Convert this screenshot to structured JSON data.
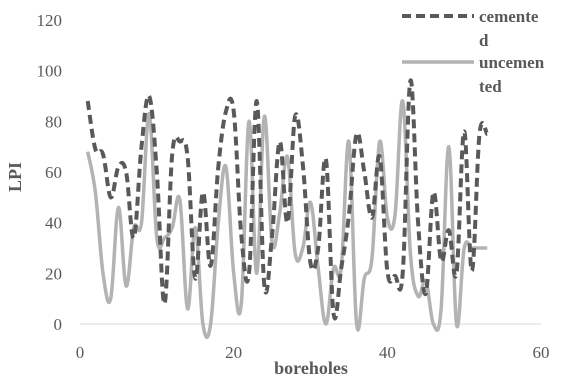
{
  "chart_data": {
    "type": "line",
    "xlabel": "boreholes",
    "ylabel": "LPI",
    "xlim": [
      0,
      60
    ],
    "ylim": [
      0,
      120
    ],
    "x_ticks": [
      "0",
      "20",
      "40",
      "60"
    ],
    "y_ticks": [
      "0",
      "20",
      "40",
      "60",
      "80",
      "100",
      "120"
    ],
    "grid": false,
    "legend_position": "top-right",
    "series": [
      {
        "name": "cemented",
        "legend_lines": [
          "cemente",
          "d"
        ],
        "style": "dashed",
        "color": "#595959",
        "x": [
          1,
          2,
          3,
          4,
          5,
          6,
          7,
          8,
          9,
          10,
          11,
          12,
          13,
          14,
          15,
          16,
          17,
          18,
          19,
          20,
          21,
          22,
          23,
          24,
          25,
          26,
          27,
          28,
          29,
          30,
          31,
          32,
          33,
          34,
          35,
          36,
          37,
          38,
          39,
          40,
          41,
          42,
          43,
          44,
          45,
          46,
          47,
          48,
          49,
          50,
          51,
          52,
          53
        ],
        "y": [
          88,
          69,
          67,
          50,
          62,
          60,
          34,
          70,
          90,
          60,
          8,
          67,
          72,
          66,
          18,
          52,
          23,
          62,
          84,
          84,
          35,
          20,
          88,
          15,
          35,
          72,
          40,
          82,
          63,
          24,
          30,
          65,
          4,
          22,
          43,
          75,
          60,
          42,
          66,
          21,
          19,
          20,
          96,
          40,
          12,
          52,
          25,
          37,
          20,
          76,
          21,
          75,
          75
        ]
      },
      {
        "name": "uncemented",
        "legend_lines": [
          "uncemen",
          "ted"
        ],
        "style": "solid",
        "color": "#b3b3b3",
        "x": [
          1,
          2,
          3,
          4,
          5,
          6,
          7,
          8,
          9,
          10,
          11,
          12,
          13,
          14,
          15,
          16,
          17,
          18,
          19,
          20,
          21,
          22,
          23,
          24,
          25,
          26,
          27,
          28,
          29,
          30,
          31,
          32,
          33,
          34,
          35,
          36,
          37,
          38,
          39,
          40,
          41,
          42,
          43,
          44,
          45,
          46,
          47,
          48,
          49,
          50,
          51,
          52,
          53
        ],
        "y": [
          68,
          52,
          20,
          10,
          46,
          15,
          38,
          40,
          83,
          34,
          34,
          38,
          49,
          6,
          38,
          0,
          0,
          40,
          62,
          20,
          8,
          80,
          20,
          82,
          32,
          44,
          66,
          28,
          30,
          48,
          22,
          0,
          22,
          22,
          72,
          0,
          18,
          26,
          72,
          42,
          43,
          88,
          28,
          11,
          17,
          0,
          6,
          70,
          0,
          30,
          30,
          30,
          30
        ]
      }
    ]
  }
}
